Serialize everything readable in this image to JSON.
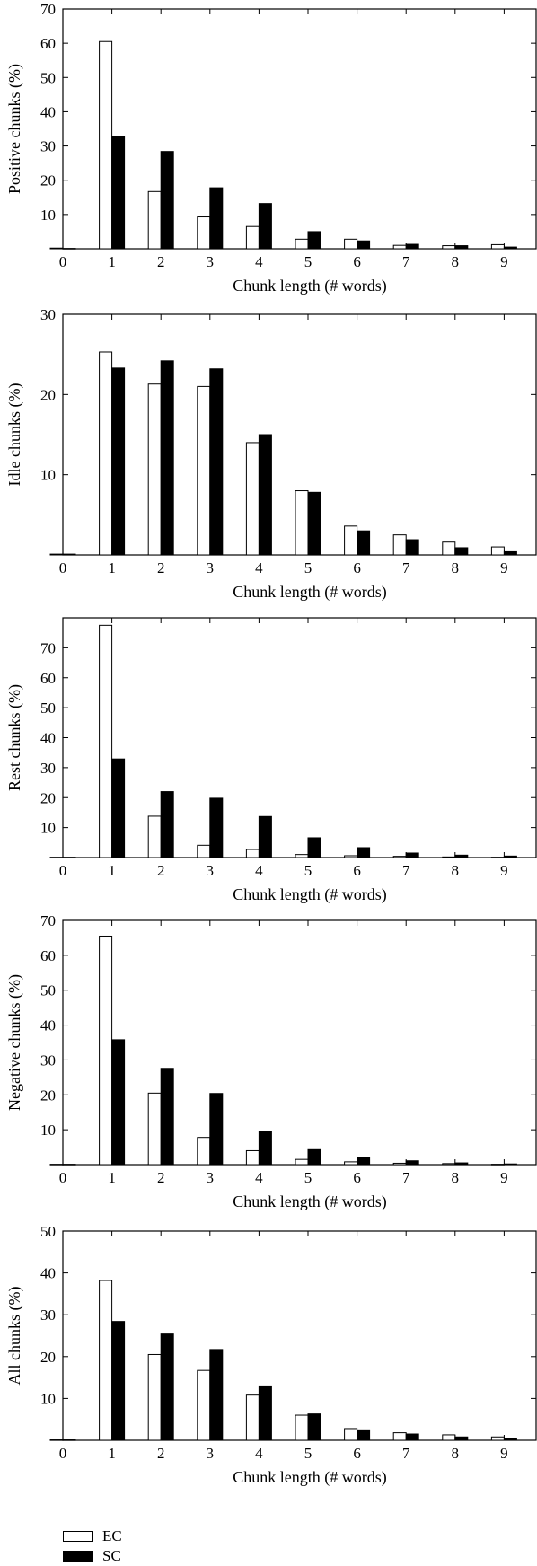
{
  "legend": [
    {
      "label": "EC",
      "color": "#ffffff"
    },
    {
      "label": "SC",
      "color": "#000000"
    }
  ],
  "chart_data": [
    {
      "type": "bar",
      "ylabel": "Positive chunks (%)",
      "xlabel": "Chunk length (# words)",
      "x": [
        0,
        1,
        2,
        3,
        4,
        5,
        6,
        7,
        8,
        9
      ],
      "ylim": [
        0,
        70
      ],
      "yticks": [
        10,
        20,
        30,
        40,
        50,
        60,
        70
      ],
      "series": [
        {
          "name": "EC",
          "color": "#ffffff",
          "values": [
            0.2,
            60.5,
            16.7,
            9.3,
            6.5,
            2.8,
            2.8,
            1.0,
            0.9,
            1.2
          ]
        },
        {
          "name": "SC",
          "color": "#000000",
          "values": [
            0.1,
            32.7,
            28.4,
            17.8,
            13.2,
            5.0,
            2.3,
            1.3,
            0.9,
            0.5
          ]
        }
      ]
    },
    {
      "type": "bar",
      "ylabel": "Idle chunks (%)",
      "xlabel": "Chunk length (# words)",
      "x": [
        0,
        1,
        2,
        3,
        4,
        5,
        6,
        7,
        8,
        9
      ],
      "ylim": [
        0,
        30
      ],
      "yticks": [
        10,
        20,
        30
      ],
      "series": [
        {
          "name": "EC",
          "color": "#ffffff",
          "values": [
            0.1,
            25.3,
            21.3,
            21.0,
            14.0,
            8.0,
            3.6,
            2.5,
            1.6,
            1.0
          ]
        },
        {
          "name": "SC",
          "color": "#000000",
          "values": [
            0.1,
            23.3,
            24.2,
            23.2,
            15.0,
            7.8,
            3.0,
            1.9,
            0.9,
            0.4
          ]
        }
      ]
    },
    {
      "type": "bar",
      "ylabel": "Rest chunks (%)",
      "xlabel": "Chunk length (# words)",
      "x": [
        0,
        1,
        2,
        3,
        4,
        5,
        6,
        7,
        8,
        9
      ],
      "ylim": [
        0,
        80
      ],
      "yticks": [
        10,
        20,
        30,
        40,
        50,
        60,
        70
      ],
      "series": [
        {
          "name": "EC",
          "color": "#ffffff",
          "values": [
            0.1,
            77.5,
            13.8,
            4.1,
            2.7,
            1.0,
            0.6,
            0.4,
            0.2,
            0.1
          ]
        },
        {
          "name": "SC",
          "color": "#000000",
          "values": [
            0.1,
            32.9,
            22.0,
            19.8,
            13.7,
            6.6,
            3.3,
            1.5,
            0.8,
            0.5
          ]
        }
      ]
    },
    {
      "type": "bar",
      "ylabel": "Negative chunks (%)",
      "xlabel": "Chunk length (# words)",
      "x": [
        0,
        1,
        2,
        3,
        4,
        5,
        6,
        7,
        8,
        9
      ],
      "ylim": [
        0,
        70
      ],
      "yticks": [
        10,
        20,
        30,
        40,
        50,
        60,
        70
      ],
      "series": [
        {
          "name": "EC",
          "color": "#ffffff",
          "values": [
            0.1,
            65.5,
            20.5,
            7.8,
            4.0,
            1.5,
            0.8,
            0.4,
            0.3,
            0.1
          ]
        },
        {
          "name": "SC",
          "color": "#000000",
          "values": [
            0.1,
            35.8,
            27.6,
            20.4,
            9.5,
            4.3,
            2.0,
            1.1,
            0.5,
            0.2
          ]
        }
      ]
    },
    {
      "type": "bar",
      "ylabel": "All chunks (%)",
      "xlabel": "Chunk length (# words)",
      "x": [
        0,
        1,
        2,
        3,
        4,
        5,
        6,
        7,
        8,
        9
      ],
      "ylim": [
        0,
        50
      ],
      "yticks": [
        10,
        20,
        30,
        40,
        50
      ],
      "series": [
        {
          "name": "EC",
          "color": "#ffffff",
          "values": [
            0.1,
            38.2,
            20.5,
            16.7,
            10.8,
            6.0,
            2.8,
            1.8,
            1.3,
            0.8
          ]
        },
        {
          "name": "SC",
          "color": "#000000",
          "values": [
            0.1,
            28.4,
            25.4,
            21.7,
            13.0,
            6.3,
            2.5,
            1.5,
            0.8,
            0.4
          ]
        }
      ]
    }
  ]
}
